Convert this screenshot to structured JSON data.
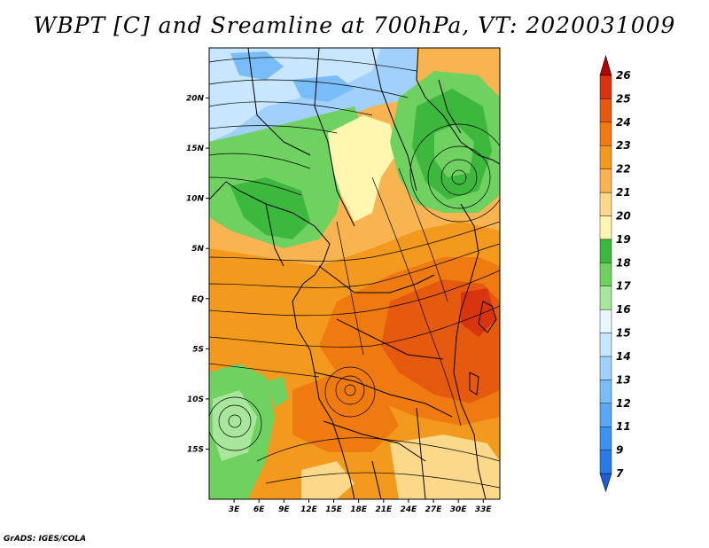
{
  "title": "WBPT [C] and Sreamline at 700hPa, VT: 2020031009",
  "credit": "GrADS: IGES/COLA",
  "map": {
    "lon_range": [
      0,
      35
    ],
    "lat_range": [
      -20,
      25
    ],
    "lat_ticks": [
      {
        "lat": 20,
        "label": "20N"
      },
      {
        "lat": 15,
        "label": "15N"
      },
      {
        "lat": 10,
        "label": "10N"
      },
      {
        "lat": 5,
        "label": "5N"
      },
      {
        "lat": 0,
        "label": "EQ"
      },
      {
        "lat": -5,
        "label": "5S"
      },
      {
        "lat": -10,
        "label": "10S"
      },
      {
        "lat": -15,
        "label": "15S"
      }
    ],
    "lon_ticks": [
      {
        "lon": 3,
        "label": "3E"
      },
      {
        "lon": 6,
        "label": "6E"
      },
      {
        "lon": 9,
        "label": "9E"
      },
      {
        "lon": 12,
        "label": "12E"
      },
      {
        "lon": 15,
        "label": "15E"
      },
      {
        "lon": 18,
        "label": "18E"
      },
      {
        "lon": 21,
        "label": "21E"
      },
      {
        "lon": 24,
        "label": "24E"
      },
      {
        "lon": 27,
        "label": "27E"
      },
      {
        "lon": 30,
        "label": "30E"
      },
      {
        "lon": 33,
        "label": "33E"
      }
    ]
  },
  "colorbar": {
    "labels": [
      "7",
      "9",
      "11",
      "12",
      "13",
      "14",
      "15",
      "16",
      "17",
      "18",
      "19",
      "20",
      "21",
      "22",
      "23",
      "24",
      "25",
      "26"
    ],
    "colors": [
      "#1e5ed6",
      "#2b7be6",
      "#3c92f0",
      "#5aa8f5",
      "#78bdf8",
      "#a0d0fb",
      "#c8e6fd",
      "#e8f7fe",
      "#a8e69c",
      "#6ed160",
      "#3cb83c",
      "#fff6b0",
      "#fbd88a",
      "#f7b450",
      "#f39a1e",
      "#ef7a10",
      "#e65a10",
      "#d83410",
      "#b00000"
    ]
  }
}
